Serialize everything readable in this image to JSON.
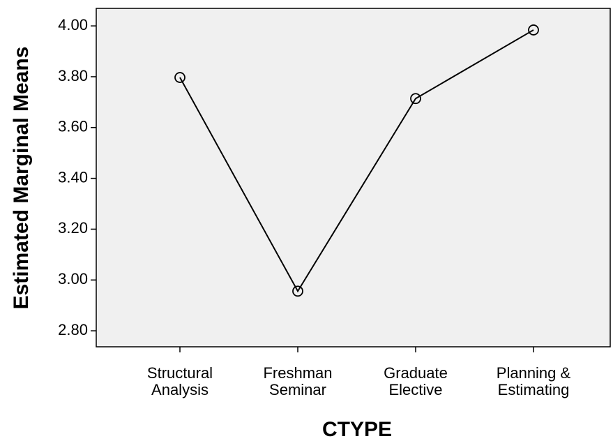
{
  "chart_data": {
    "type": "line",
    "x_label": "CTYPE",
    "y_label": "Estimated Marginal Means",
    "categories": [
      [
        "Structural",
        "Analysis"
      ],
      [
        "Freshman",
        "Seminar"
      ],
      [
        "Graduate",
        "Elective"
      ],
      [
        "Planning &",
        "Estimating"
      ]
    ],
    "values": [
      3.797,
      2.956,
      3.714,
      3.984
    ],
    "color": "#000000",
    "ylim": [
      2.737,
      4.069
    ],
    "yticks": [
      {
        "value": 2.8,
        "label": "2.80"
      },
      {
        "value": 3.0,
        "label": "3.00"
      },
      {
        "value": 3.2,
        "label": "3.20"
      },
      {
        "value": 3.4,
        "label": "3.40"
      },
      {
        "value": 3.6,
        "label": "3.60"
      },
      {
        "value": 3.8,
        "label": "3.80"
      },
      {
        "value": 4.0,
        "label": "4.00"
      }
    ],
    "grid": false
  }
}
